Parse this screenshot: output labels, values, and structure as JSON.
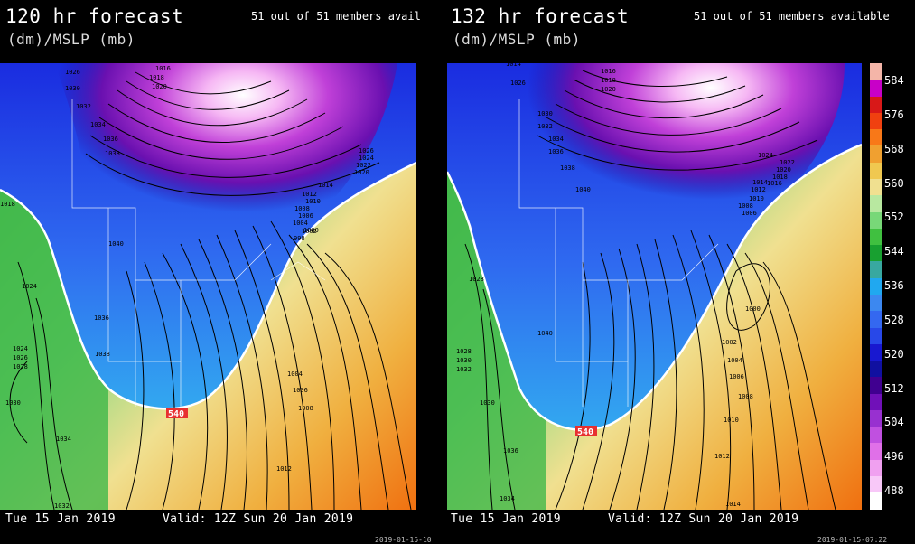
{
  "panels": [
    {
      "title": "120 hr forecast",
      "subtitle": "(dm)/MSLP (mb)",
      "members": "51 out of 51 members avail",
      "init_date": "Tue 15 Jan 2019",
      "valid": "Valid: 12Z Sun 20 Jan 2019",
      "stamp": "2019-01-15-10",
      "contour_label": "540",
      "isobar_labels": [
        "1016",
        "1018",
        "1020",
        "1026",
        "1030",
        "1032",
        "1034",
        "1036",
        "1038",
        "1040",
        "1036",
        "1038",
        "1024",
        "1030",
        "1034",
        "1032",
        "1024",
        "1026",
        "1028",
        "1018",
        "1012",
        "1010",
        "1008",
        "1006",
        "1004",
        "1002",
        "1000",
        "998",
        "1014",
        "1020",
        "1022",
        "1024",
        "1026",
        "1004",
        "1006",
        "1008",
        "1012"
      ]
    },
    {
      "title": "132 hr forecast",
      "subtitle": "(dm)/MSLP (mb)",
      "members": "51 out of 51 members available",
      "init_date": "Tue 15 Jan 2019",
      "valid": "Valid: 12Z Sun 20 Jan 2019",
      "stamp": "2019-01-15-07:22",
      "contour_label": "540",
      "isobar_labels": [
        "1014",
        "1016",
        "1018",
        "1020",
        "1026",
        "1030",
        "1032",
        "1034",
        "1036",
        "1038",
        "1040",
        "1040",
        "1032",
        "1030",
        "1028",
        "1028",
        "1036",
        "1034",
        "1030",
        "1024",
        "1022",
        "1020",
        "1018",
        "1016",
        "1014",
        "1012",
        "1010",
        "1008",
        "1006",
        "1004",
        "1002",
        "1000",
        "1006",
        "1008",
        "1010",
        "1012",
        "1014"
      ]
    }
  ],
  "colorbar": {
    "labels": [
      "584",
      "576",
      "568",
      "560",
      "552",
      "544",
      "536",
      "528",
      "520",
      "512",
      "504",
      "496",
      "488"
    ],
    "colors": [
      "#f4b5a8",
      "#c800c8",
      "#d81818",
      "#f04010",
      "#f87818",
      "#f0a030",
      "#f0c850",
      "#f0e090",
      "#b8e8a0",
      "#78d878",
      "#40c040",
      "#18a030",
      "#38a8a0",
      "#20a8f0",
      "#3c88f0",
      "#3468f0",
      "#2848e8",
      "#1818d0",
      "#1010a0",
      "#400090",
      "#7010b8",
      "#9830d0",
      "#c050e0",
      "#e070e8",
      "#f0a0f0",
      "#f8c8f8",
      "#ffffff"
    ]
  }
}
